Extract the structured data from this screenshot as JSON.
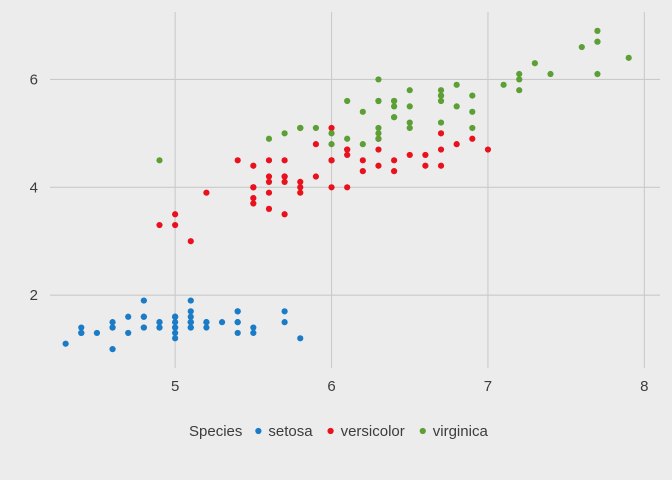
{
  "chart_data": {
    "type": "scatter",
    "title": "",
    "xlabel": "",
    "ylabel": "",
    "xlim": [
      4.2,
      8.1
    ],
    "ylim": [
      0.65,
      7.25
    ],
    "x_ticks": [
      5,
      6,
      7,
      8
    ],
    "y_ticks": [
      2,
      4,
      6
    ],
    "grid": true,
    "legend": {
      "title": "Species",
      "position": "bottom"
    },
    "series": [
      {
        "name": "setosa",
        "color": "#1a7bc6",
        "points": [
          [
            5.1,
            1.4
          ],
          [
            4.9,
            1.4
          ],
          [
            4.7,
            1.3
          ],
          [
            4.6,
            1.5
          ],
          [
            5.0,
            1.4
          ],
          [
            5.4,
            1.7
          ],
          [
            4.6,
            1.4
          ],
          [
            5.0,
            1.5
          ],
          [
            4.4,
            1.4
          ],
          [
            4.9,
            1.5
          ],
          [
            5.4,
            1.5
          ],
          [
            4.8,
            1.6
          ],
          [
            4.8,
            1.4
          ],
          [
            4.3,
            1.1
          ],
          [
            5.8,
            1.2
          ],
          [
            5.7,
            1.5
          ],
          [
            5.4,
            1.3
          ],
          [
            5.1,
            1.4
          ],
          [
            5.7,
            1.7
          ],
          [
            5.1,
            1.5
          ],
          [
            5.4,
            1.7
          ],
          [
            5.1,
            1.5
          ],
          [
            4.6,
            1.0
          ],
          [
            5.1,
            1.7
          ],
          [
            4.8,
            1.9
          ],
          [
            5.0,
            1.6
          ],
          [
            5.0,
            1.6
          ],
          [
            5.2,
            1.5
          ],
          [
            5.2,
            1.4
          ],
          [
            4.7,
            1.6
          ],
          [
            4.8,
            1.6
          ],
          [
            5.4,
            1.5
          ],
          [
            5.2,
            1.5
          ],
          [
            5.5,
            1.4
          ],
          [
            4.9,
            1.5
          ],
          [
            5.0,
            1.2
          ],
          [
            5.5,
            1.3
          ],
          [
            4.9,
            1.4
          ],
          [
            4.4,
            1.3
          ],
          [
            5.1,
            1.5
          ],
          [
            5.0,
            1.3
          ],
          [
            4.5,
            1.3
          ],
          [
            4.4,
            1.3
          ],
          [
            5.0,
            1.6
          ],
          [
            5.1,
            1.9
          ],
          [
            4.8,
            1.4
          ],
          [
            5.1,
            1.6
          ],
          [
            4.6,
            1.4
          ],
          [
            5.3,
            1.5
          ],
          [
            5.0,
            1.4
          ]
        ]
      },
      {
        "name": "versicolor",
        "color": "#e8111d",
        "points": [
          [
            7.0,
            4.7
          ],
          [
            6.4,
            4.5
          ],
          [
            6.9,
            4.9
          ],
          [
            5.5,
            4.0
          ],
          [
            6.5,
            4.6
          ],
          [
            5.7,
            4.5
          ],
          [
            6.3,
            4.7
          ],
          [
            4.9,
            3.3
          ],
          [
            6.6,
            4.6
          ],
          [
            5.2,
            3.9
          ],
          [
            5.0,
            3.5
          ],
          [
            5.9,
            4.2
          ],
          [
            6.0,
            4.0
          ],
          [
            6.1,
            4.7
          ],
          [
            5.6,
            3.6
          ],
          [
            6.7,
            4.4
          ],
          [
            5.6,
            4.5
          ],
          [
            5.8,
            4.1
          ],
          [
            6.2,
            4.5
          ],
          [
            5.6,
            3.9
          ],
          [
            5.9,
            4.8
          ],
          [
            6.1,
            4.0
          ],
          [
            6.3,
            4.9
          ],
          [
            6.1,
            4.7
          ],
          [
            6.4,
            4.3
          ],
          [
            6.6,
            4.4
          ],
          [
            6.8,
            4.8
          ],
          [
            6.7,
            5.0
          ],
          [
            6.0,
            4.5
          ],
          [
            5.7,
            3.5
          ],
          [
            5.5,
            3.8
          ],
          [
            5.5,
            3.7
          ],
          [
            5.8,
            3.9
          ],
          [
            6.0,
            5.1
          ],
          [
            5.4,
            4.5
          ],
          [
            6.0,
            4.5
          ],
          [
            6.7,
            4.7
          ],
          [
            6.3,
            4.4
          ],
          [
            5.6,
            4.1
          ],
          [
            5.5,
            4.0
          ],
          [
            5.5,
            4.4
          ],
          [
            6.1,
            4.6
          ],
          [
            5.8,
            4.0
          ],
          [
            5.0,
            3.3
          ],
          [
            5.6,
            4.2
          ],
          [
            5.7,
            4.2
          ],
          [
            5.7,
            4.2
          ],
          [
            6.2,
            4.3
          ],
          [
            5.1,
            3.0
          ],
          [
            5.7,
            4.1
          ]
        ]
      },
      {
        "name": "virginica",
        "color": "#5c9f34",
        "points": [
          [
            6.3,
            6.0
          ],
          [
            5.8,
            5.1
          ],
          [
            7.1,
            5.9
          ],
          [
            6.3,
            5.6
          ],
          [
            6.5,
            5.8
          ],
          [
            7.6,
            6.6
          ],
          [
            4.9,
            4.5
          ],
          [
            7.3,
            6.3
          ],
          [
            6.7,
            5.8
          ],
          [
            7.2,
            6.1
          ],
          [
            6.5,
            5.1
          ],
          [
            6.4,
            5.3
          ],
          [
            6.8,
            5.5
          ],
          [
            5.7,
            5.0
          ],
          [
            5.8,
            5.1
          ],
          [
            6.4,
            5.3
          ],
          [
            6.5,
            5.5
          ],
          [
            7.7,
            6.7
          ],
          [
            7.7,
            6.9
          ],
          [
            6.0,
            5.0
          ],
          [
            6.9,
            5.7
          ],
          [
            5.6,
            4.9
          ],
          [
            7.7,
            6.7
          ],
          [
            6.3,
            4.9
          ],
          [
            6.7,
            5.7
          ],
          [
            7.2,
            6.0
          ],
          [
            6.2,
            4.8
          ],
          [
            6.1,
            4.9
          ],
          [
            6.4,
            5.6
          ],
          [
            7.2,
            5.8
          ],
          [
            7.4,
            6.1
          ],
          [
            7.9,
            6.4
          ],
          [
            6.4,
            5.6
          ],
          [
            6.3,
            5.1
          ],
          [
            6.1,
            5.6
          ],
          [
            7.7,
            6.1
          ],
          [
            6.3,
            5.6
          ],
          [
            6.4,
            5.5
          ],
          [
            6.0,
            4.8
          ],
          [
            6.9,
            5.4
          ],
          [
            6.7,
            5.6
          ],
          [
            6.9,
            5.1
          ],
          [
            5.8,
            5.1
          ],
          [
            6.8,
            5.9
          ],
          [
            6.7,
            5.7
          ],
          [
            6.7,
            5.2
          ],
          [
            6.3,
            5.0
          ],
          [
            6.5,
            5.2
          ],
          [
            6.2,
            5.4
          ],
          [
            5.9,
            5.1
          ]
        ]
      }
    ]
  }
}
